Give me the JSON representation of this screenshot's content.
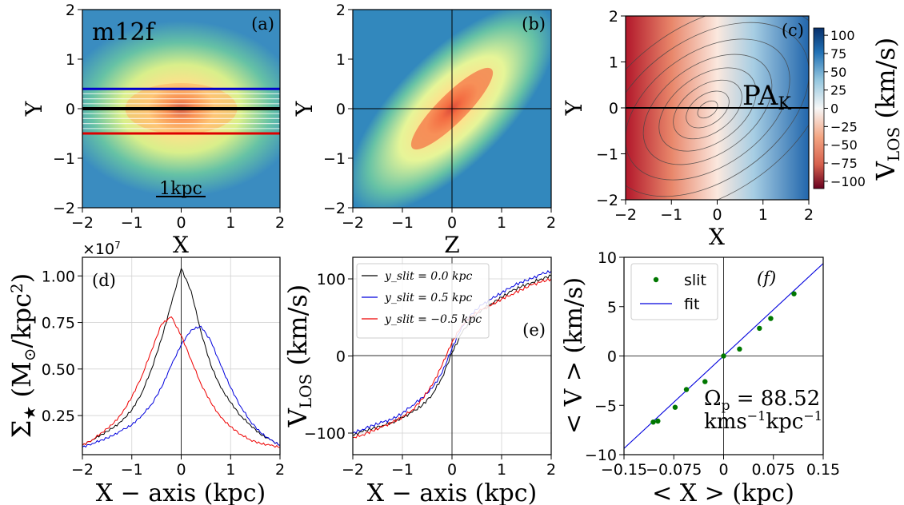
{
  "chart_data": [
    {
      "id": "a",
      "type": "heatmap",
      "panel_label": "(a)",
      "title_text": "m12f",
      "scale_bar_label": "1kpc",
      "xlabel": "X",
      "ylabel": "Y",
      "xlim": [
        -2,
        2
      ],
      "ylim": [
        -2,
        2
      ],
      "xticks": [
        -2,
        -1,
        0,
        1,
        2
      ],
      "yticks": [
        -2,
        -1,
        0,
        1,
        2
      ],
      "slit_lines_y": [
        -0.5,
        -0.4,
        -0.3,
        -0.2,
        -0.1,
        0.0,
        0.1,
        0.2,
        0.3,
        0.4
      ],
      "slit_colors": {
        "top": "#0000cc",
        "middle": "#000000",
        "bottom": "#dd0000"
      }
    },
    {
      "id": "b",
      "type": "heatmap",
      "panel_label": "(b)",
      "xlabel": "Z",
      "ylabel": "Y",
      "xlim": [
        -2,
        2
      ],
      "ylim": [
        -2,
        2
      ],
      "xticks": [
        -2,
        -1,
        0,
        1,
        2
      ],
      "yticks": [
        -2,
        -1,
        0,
        1,
        2
      ]
    },
    {
      "id": "c",
      "type": "heatmap",
      "panel_label": "(c)",
      "annotation": "PA_K",
      "xlabel": "X",
      "ylabel": "Y",
      "xlim": [
        -2,
        2
      ],
      "ylim": [
        -2,
        2
      ],
      "xticks": [
        -2,
        -1,
        0,
        1,
        2
      ],
      "yticks": [
        -2,
        -1,
        0,
        1,
        2
      ],
      "colorbar": {
        "label": "V_LOS (km/s)",
        "range": [
          -110,
          110
        ],
        "ticks": [
          100,
          75,
          50,
          25,
          0,
          -25,
          -50,
          -75,
          -100
        ],
        "cmap": "RdBu"
      }
    },
    {
      "id": "d",
      "type": "line",
      "panel_label": "(d)",
      "xlabel": "X − axis (kpc)",
      "ylabel": "Σ★ (M⊙/kpc²)",
      "offset_text": "×10^7",
      "xlim": [
        -2,
        2
      ],
      "ylim": [
        0.04,
        1.1
      ],
      "xticks": [
        -2,
        -1,
        0,
        1,
        2
      ],
      "yticks": [
        0.25,
        0.5,
        0.75,
        1.0
      ],
      "ytick_labels": [
        "0.25",
        "0.50",
        "0.75",
        "1.00"
      ],
      "grid": true,
      "x": [
        -2.0,
        -1.8,
        -1.6,
        -1.4,
        -1.2,
        -1.0,
        -0.8,
        -0.6,
        -0.4,
        -0.2,
        0.0,
        0.2,
        0.4,
        0.6,
        0.8,
        1.0,
        1.2,
        1.4,
        1.6,
        1.8,
        2.0
      ],
      "series": [
        {
          "name": "y_slit = 0.0 kpc",
          "color": "#000000",
          "values": [
            0.09,
            0.12,
            0.15,
            0.18,
            0.22,
            0.28,
            0.37,
            0.5,
            0.66,
            0.85,
            1.04,
            0.92,
            0.7,
            0.52,
            0.4,
            0.32,
            0.25,
            0.2,
            0.15,
            0.12,
            0.09
          ]
        },
        {
          "name": "y_slit = 0.5 kpc",
          "color": "#0000dd",
          "values": [
            0.08,
            0.1,
            0.12,
            0.14,
            0.17,
            0.2,
            0.25,
            0.31,
            0.4,
            0.52,
            0.63,
            0.71,
            0.73,
            0.65,
            0.52,
            0.4,
            0.3,
            0.22,
            0.16,
            0.12,
            0.09
          ]
        },
        {
          "name": "y_slit = −0.5 kpc",
          "color": "#ee0000",
          "values": [
            0.09,
            0.12,
            0.16,
            0.2,
            0.26,
            0.35,
            0.46,
            0.6,
            0.74,
            0.78,
            0.68,
            0.55,
            0.42,
            0.32,
            0.24,
            0.19,
            0.15,
            0.12,
            0.1,
            0.09,
            0.08
          ]
        }
      ]
    },
    {
      "id": "e",
      "type": "line",
      "panel_label": "(e)",
      "xlabel": "X − axis (kpc)",
      "ylabel": "V_LOS (km/s)",
      "xlim": [
        -2,
        2
      ],
      "ylim": [
        -128,
        128
      ],
      "xticks": [
        -2,
        -1,
        0,
        1,
        2
      ],
      "yticks": [
        -100,
        0,
        100
      ],
      "grid": true,
      "x": [
        -2.0,
        -1.8,
        -1.6,
        -1.4,
        -1.2,
        -1.0,
        -0.8,
        -0.6,
        -0.4,
        -0.2,
        0.0,
        0.2,
        0.4,
        0.6,
        0.8,
        1.0,
        1.2,
        1.4,
        1.6,
        1.8,
        2.0
      ],
      "series": [
        {
          "name": "y_slit = 0.0 kpc",
          "color": "#000000",
          "values": [
            -103,
            -98,
            -94,
            -90,
            -86,
            -80,
            -73,
            -64,
            -50,
            -28,
            4,
            30,
            48,
            60,
            68,
            76,
            84,
            90,
            95,
            100,
            104
          ]
        },
        {
          "name": "y_slit = 0.5 kpc",
          "color": "#0000dd",
          "values": [
            -100,
            -95,
            -90,
            -86,
            -82,
            -74,
            -64,
            -54,
            -42,
            -22,
            10,
            38,
            55,
            66,
            74,
            82,
            90,
            96,
            100,
            106,
            110
          ]
        },
        {
          "name": "y_slit = −0.5 kpc",
          "color": "#ee0000",
          "values": [
            -106,
            -102,
            -97,
            -92,
            -86,
            -79,
            -70,
            -56,
            -38,
            -12,
            18,
            40,
            52,
            60,
            66,
            74,
            80,
            86,
            92,
            96,
            100
          ]
        }
      ],
      "legend": [
        {
          "label": "y_slit = 0.0 kpc",
          "color": "#000000"
        },
        {
          "label": "y_slit = 0.5 kpc",
          "color": "#0000dd"
        },
        {
          "label": "y_slit = −0.5 kpc",
          "color": "#ee0000"
        }
      ]
    },
    {
      "id": "f",
      "type": "scatter",
      "panel_label": "(f)",
      "xlabel": "< X > (kpc)",
      "ylabel": "< V > (km/s)",
      "xlim": [
        -0.15,
        0.15
      ],
      "ylim": [
        -10,
        10
      ],
      "xticks": [
        -0.15,
        -0.075,
        0.0,
        0.075,
        0.15
      ],
      "xtick_labels": [
        "−0.15",
        "−0.075",
        "0",
        "0.075",
        "0.15"
      ],
      "yticks": [
        -10,
        -5,
        0,
        5,
        10
      ],
      "points_x": [
        -0.106,
        -0.099,
        -0.073,
        -0.056,
        -0.028,
        0.0,
        0.024,
        0.054,
        0.071,
        0.106
      ],
      "points_y": [
        -6.7,
        -6.6,
        -5.2,
        -3.4,
        -2.6,
        0.0,
        0.7,
        2.8,
        3.8,
        6.3
      ],
      "fit": {
        "slope": 62.5,
        "intercept": 0.0
      },
      "legend": [
        {
          "label": "slit",
          "color": "#007700"
        },
        {
          "label": "fit",
          "color": "#0000dd"
        }
      ],
      "annotation_line1": "Ωp = 88.52",
      "annotation_line2": "kms⁻¹kpc⁻¹"
    }
  ]
}
